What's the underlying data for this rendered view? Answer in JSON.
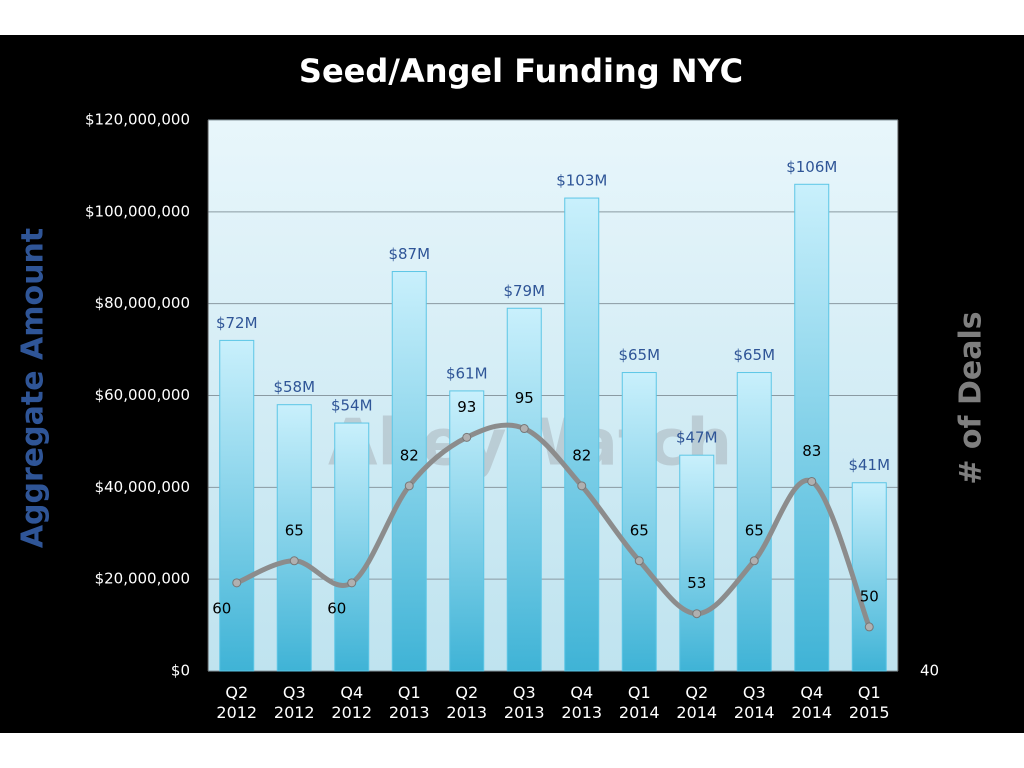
{
  "chart_data": {
    "type": "bar-line",
    "title": "Seed/Angel Funding NYC",
    "y_label": "Aggregate  Amount",
    "y2_label": "# of Deals",
    "watermark": "AlleyWatch",
    "categories": [
      "Q2 2012",
      "Q3 2012",
      "Q4 2012",
      "Q1 2013",
      "Q2 2013",
      "Q3 2013",
      "Q4 2013",
      "Q1 2014",
      "Q2 2014",
      "Q3 2014",
      "Q4 2014",
      "Q1 2015"
    ],
    "series": [
      {
        "type": "bar",
        "color": "#5cc6e6",
        "axis": "y",
        "values": [
          72000000,
          58000000,
          54000000,
          87000000,
          61000000,
          79000000,
          103000000,
          65000000,
          47000000,
          65000000,
          106000000,
          41000000
        ],
        "value_labels": [
          "$72M",
          "$58M",
          "$54M",
          "$87M",
          "$61M",
          "$79M",
          "$103M",
          "$65M",
          "$47M",
          "$65M",
          "$106M",
          "$41M"
        ]
      },
      {
        "type": "line",
        "color": "#8c8c8c",
        "axis": "y2",
        "values": [
          60,
          65,
          60,
          82,
          93,
          95,
          82,
          65,
          53,
          65,
          83,
          50
        ]
      }
    ],
    "ylim": [
      0,
      120000000
    ],
    "yticks": [
      {
        "value": 0,
        "label": "$0"
      },
      {
        "value": 20000000,
        "label": "$20,000,000"
      },
      {
        "value": 40000000,
        "label": "$40,000,000"
      },
      {
        "value": 60000000,
        "label": "$60,000,000"
      },
      {
        "value": 80000000,
        "label": "$80,000,000"
      },
      {
        "value": 100000000,
        "label": "$100,000,000"
      },
      {
        "value": 120000000,
        "label": "$120,000,000"
      }
    ],
    "y2lim": [
      40,
      165
    ],
    "y2ticks": [
      40
    ],
    "grid": true
  }
}
